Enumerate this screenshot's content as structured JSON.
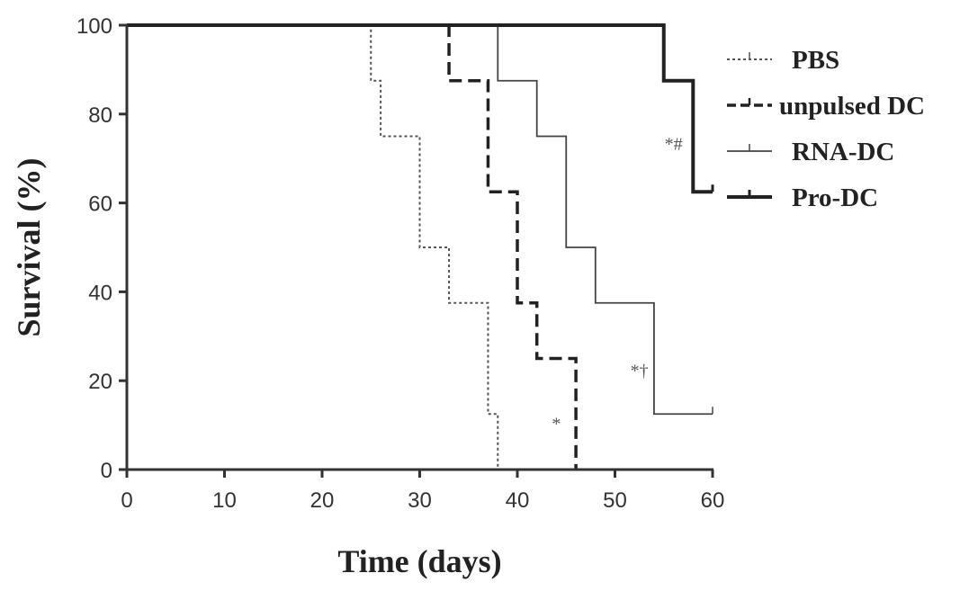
{
  "chart_data": {
    "type": "line",
    "title": "",
    "xlabel": "Time (days)",
    "ylabel": "Survival (%)",
    "xlim": [
      0,
      60
    ],
    "ylim": [
      0,
      100
    ],
    "xticks": [
      0,
      10,
      20,
      30,
      40,
      50,
      60
    ],
    "yticks": [
      0,
      20,
      40,
      60,
      80,
      100
    ],
    "grid": false,
    "legend_position": "top-right",
    "series": [
      {
        "name": "PBS",
        "style": "dotted",
        "color": "#555555",
        "x": [
          0,
          25,
          26,
          30,
          33,
          37,
          38
        ],
        "y": [
          100,
          87.5,
          75,
          50,
          37.5,
          12.5,
          0
        ]
      },
      {
        "name": "unpulsed DC",
        "style": "dashed",
        "color": "#222222",
        "x": [
          0,
          33,
          37,
          40,
          42,
          46
        ],
        "y": [
          100,
          87.5,
          62.5,
          37.5,
          25,
          0
        ]
      },
      {
        "name": "RNA-DC",
        "style": "thin",
        "color": "#444444",
        "x": [
          0,
          38,
          42,
          45,
          48,
          54,
          60
        ],
        "y": [
          100,
          87.5,
          75,
          50,
          37.5,
          12.5,
          12.5
        ]
      },
      {
        "name": "Pro-DC",
        "style": "thick",
        "color": "#222222",
        "x": [
          0,
          55,
          58,
          60
        ],
        "y": [
          100,
          87.5,
          62.5,
          62.5
        ]
      }
    ],
    "annotations": [
      {
        "text": "*#",
        "x": 56,
        "y": 72
      },
      {
        "text": "*†",
        "x": 52.5,
        "y": 21
      },
      {
        "text": "*",
        "x": 44,
        "y": 9
      }
    ]
  }
}
